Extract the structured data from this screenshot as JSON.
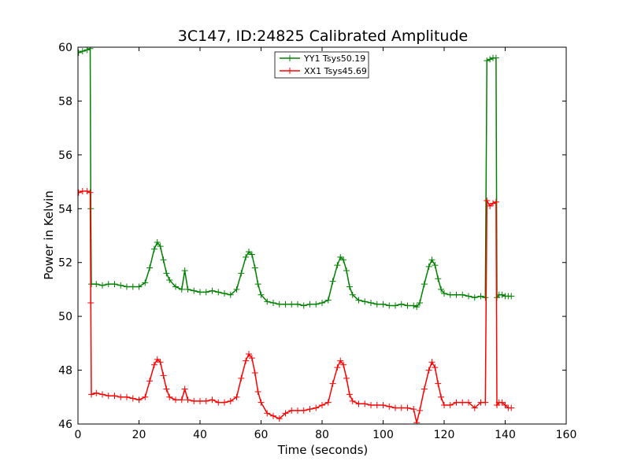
{
  "chart_data": {
    "type": "line",
    "title": "3C147, ID:24825 Calibrated Amplitude",
    "xlabel": "Time (seconds)",
    "ylabel": "Power in Kelvin",
    "xlim": [
      0,
      160
    ],
    "ylim": [
      46,
      60
    ],
    "xticks": [
      "0",
      "20",
      "40",
      "60",
      "80",
      "100",
      "120",
      "140",
      "160"
    ],
    "yticks": [
      "46",
      "48",
      "50",
      "52",
      "54",
      "56",
      "58",
      "60"
    ],
    "grid": false,
    "legend_position": "top-center",
    "series": [
      {
        "name": "YY1 Tsys50.19",
        "color": "#008000",
        "marker": "+",
        "points": [
          [
            0.2,
            59.8
          ],
          [
            1.5,
            59.85
          ],
          [
            3.0,
            59.9
          ],
          [
            4.0,
            59.95
          ],
          [
            4.2,
            54.0
          ],
          [
            4.4,
            51.2
          ],
          [
            6,
            51.2
          ],
          [
            8,
            51.15
          ],
          [
            10,
            51.2
          ],
          [
            12,
            51.2
          ],
          [
            14,
            51.15
          ],
          [
            16,
            51.1
          ],
          [
            18,
            51.1
          ],
          [
            20,
            51.1
          ],
          [
            22,
            51.25
          ],
          [
            23.5,
            51.8
          ],
          [
            25,
            52.5
          ],
          [
            26,
            52.75
          ],
          [
            27,
            52.6
          ],
          [
            28,
            52.1
          ],
          [
            29,
            51.6
          ],
          [
            30,
            51.35
          ],
          [
            32,
            51.1
          ],
          [
            34,
            51.0
          ],
          [
            35,
            51.7
          ],
          [
            36,
            51.0
          ],
          [
            38,
            50.95
          ],
          [
            40,
            50.9
          ],
          [
            42,
            50.9
          ],
          [
            44,
            50.95
          ],
          [
            46,
            50.9
          ],
          [
            48,
            50.85
          ],
          [
            50,
            50.8
          ],
          [
            52,
            51.0
          ],
          [
            53.5,
            51.6
          ],
          [
            55,
            52.2
          ],
          [
            56,
            52.4
          ],
          [
            57,
            52.3
          ],
          [
            58,
            51.8
          ],
          [
            59,
            51.2
          ],
          [
            60,
            50.8
          ],
          [
            62,
            50.55
          ],
          [
            64,
            50.5
          ],
          [
            66,
            50.45
          ],
          [
            68,
            50.45
          ],
          [
            70,
            50.45
          ],
          [
            72,
            50.45
          ],
          [
            74,
            50.4
          ],
          [
            76,
            50.45
          ],
          [
            78,
            50.45
          ],
          [
            80,
            50.5
          ],
          [
            82,
            50.6
          ],
          [
            83.5,
            51.3
          ],
          [
            85,
            51.9
          ],
          [
            86,
            52.2
          ],
          [
            87,
            52.1
          ],
          [
            88,
            51.7
          ],
          [
            89,
            51.1
          ],
          [
            90,
            50.8
          ],
          [
            92,
            50.6
          ],
          [
            94,
            50.55
          ],
          [
            96,
            50.5
          ],
          [
            98,
            50.45
          ],
          [
            100,
            50.45
          ],
          [
            102,
            50.4
          ],
          [
            104,
            50.4
          ],
          [
            106,
            50.45
          ],
          [
            108,
            50.4
          ],
          [
            110,
            50.4
          ],
          [
            111,
            50.35
          ],
          [
            112,
            50.5
          ],
          [
            113.5,
            51.2
          ],
          [
            115,
            51.85
          ],
          [
            116,
            52.1
          ],
          [
            117,
            51.9
          ],
          [
            118,
            51.4
          ],
          [
            119,
            51.0
          ],
          [
            120,
            50.85
          ],
          [
            122,
            50.8
          ],
          [
            124,
            50.8
          ],
          [
            126,
            50.8
          ],
          [
            128,
            50.75
          ],
          [
            130,
            50.7
          ],
          [
            132,
            50.75
          ],
          [
            133.5,
            50.7
          ],
          [
            134,
            59.5
          ],
          [
            135,
            59.55
          ],
          [
            136,
            59.6
          ],
          [
            137,
            59.6
          ],
          [
            137.3,
            50.7
          ],
          [
            138,
            50.8
          ],
          [
            139,
            50.8
          ],
          [
            140,
            50.75
          ],
          [
            141,
            50.75
          ],
          [
            142,
            50.75
          ]
        ]
      },
      {
        "name": "XX1 Tsys45.69",
        "color": "#ff0000",
        "marker": "+",
        "points": [
          [
            0.2,
            54.6
          ],
          [
            1.5,
            54.65
          ],
          [
            3.0,
            54.65
          ],
          [
            4.0,
            54.6
          ],
          [
            4.2,
            50.5
          ],
          [
            4.4,
            47.1
          ],
          [
            6,
            47.15
          ],
          [
            8,
            47.1
          ],
          [
            10,
            47.05
          ],
          [
            12,
            47.05
          ],
          [
            14,
            47.0
          ],
          [
            16,
            47.0
          ],
          [
            18,
            46.95
          ],
          [
            20,
            46.9
          ],
          [
            22,
            47.0
          ],
          [
            23.5,
            47.6
          ],
          [
            25,
            48.2
          ],
          [
            26,
            48.4
          ],
          [
            27,
            48.3
          ],
          [
            28,
            47.8
          ],
          [
            29,
            47.3
          ],
          [
            30,
            47.0
          ],
          [
            32,
            46.9
          ],
          [
            34,
            46.9
          ],
          [
            35,
            47.3
          ],
          [
            36,
            46.9
          ],
          [
            38,
            46.85
          ],
          [
            40,
            46.85
          ],
          [
            42,
            46.85
          ],
          [
            44,
            46.9
          ],
          [
            46,
            46.8
          ],
          [
            48,
            46.8
          ],
          [
            50,
            46.85
          ],
          [
            52,
            47.0
          ],
          [
            53.5,
            47.7
          ],
          [
            55,
            48.35
          ],
          [
            56,
            48.6
          ],
          [
            57,
            48.45
          ],
          [
            58,
            47.9
          ],
          [
            59,
            47.2
          ],
          [
            60,
            46.8
          ],
          [
            62,
            46.4
          ],
          [
            64,
            46.3
          ],
          [
            66,
            46.2
          ],
          [
            68,
            46.4
          ],
          [
            70,
            46.5
          ],
          [
            72,
            46.5
          ],
          [
            74,
            46.5
          ],
          [
            76,
            46.55
          ],
          [
            78,
            46.6
          ],
          [
            80,
            46.7
          ],
          [
            82,
            46.8
          ],
          [
            83.5,
            47.5
          ],
          [
            85,
            48.1
          ],
          [
            86,
            48.35
          ],
          [
            87,
            48.2
          ],
          [
            88,
            47.7
          ],
          [
            89,
            47.1
          ],
          [
            90,
            46.85
          ],
          [
            92,
            46.75
          ],
          [
            94,
            46.75
          ],
          [
            96,
            46.7
          ],
          [
            98,
            46.7
          ],
          [
            100,
            46.7
          ],
          [
            102,
            46.65
          ],
          [
            104,
            46.6
          ],
          [
            106,
            46.6
          ],
          [
            108,
            46.6
          ],
          [
            110,
            46.55
          ],
          [
            111,
            46.05
          ],
          [
            112,
            46.5
          ],
          [
            113.5,
            47.3
          ],
          [
            115,
            48.0
          ],
          [
            116,
            48.3
          ],
          [
            117,
            48.1
          ],
          [
            118,
            47.5
          ],
          [
            119,
            47.0
          ],
          [
            120,
            46.7
          ],
          [
            122,
            46.7
          ],
          [
            124,
            46.8
          ],
          [
            126,
            46.8
          ],
          [
            128,
            46.8
          ],
          [
            130,
            46.6
          ],
          [
            132,
            46.8
          ],
          [
            133.5,
            46.8
          ],
          [
            134,
            54.3
          ],
          [
            135,
            54.1
          ],
          [
            136,
            54.2
          ],
          [
            137,
            54.25
          ],
          [
            137.3,
            46.7
          ],
          [
            138,
            46.8
          ],
          [
            139,
            46.8
          ],
          [
            140,
            46.7
          ],
          [
            141,
            46.6
          ],
          [
            142,
            46.6
          ]
        ]
      }
    ]
  }
}
